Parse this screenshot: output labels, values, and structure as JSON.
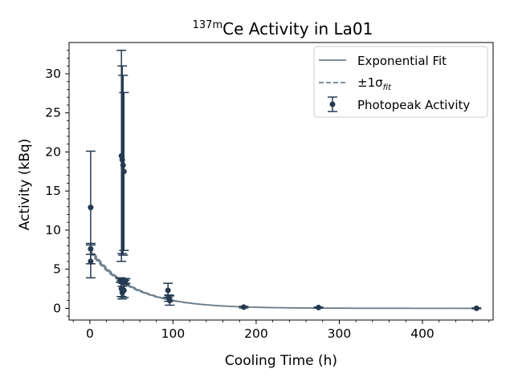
{
  "chart_data": {
    "type": "scatter",
    "title": {
      "sup": "137m",
      "main": "Ce Activity in La01"
    },
    "xlabel": "Cooling Time (h)",
    "ylabel": "Activity (kBq)",
    "xlim": [
      -25,
      485
    ],
    "ylim": [
      -1.5,
      34
    ],
    "xticks": [
      0,
      100,
      200,
      300,
      400
    ],
    "yticks": [
      0,
      5,
      10,
      15,
      20,
      25,
      30
    ],
    "grid": false,
    "legend_position": "top-right",
    "legend": [
      {
        "label": "Exponential Fit",
        "style": "solid"
      },
      {
        "label": "±1σ",
        "sub": "fit",
        "style": "dashed"
      },
      {
        "label": "Photopeak Activity",
        "style": "errorbar"
      }
    ],
    "fit": {
      "A0": 7.5,
      "half_life_h": 34.4,
      "sigma_frac": 0.04
    },
    "series": [
      {
        "name": "Photopeak Activity",
        "points": [
          {
            "x": 1,
            "y": 12.9,
            "err": 7.2
          },
          {
            "x": 1,
            "y": 7.6,
            "err": 0.7
          },
          {
            "x": 1,
            "y": 6.0,
            "err": 2.1
          },
          {
            "x": 37,
            "y": 3.6,
            "err": 0.3
          },
          {
            "x": 38,
            "y": 2.5,
            "err": 1.0
          },
          {
            "x": 38,
            "y": 19.5,
            "err": 13.5
          },
          {
            "x": 39,
            "y": 2.0,
            "err": 0.8
          },
          {
            "x": 39,
            "y": 19.0,
            "err": 12.0
          },
          {
            "x": 40,
            "y": 3.5,
            "err": 0.3
          },
          {
            "x": 40,
            "y": 18.3,
            "err": 11.5
          },
          {
            "x": 41,
            "y": 2.3,
            "err": 0.9
          },
          {
            "x": 41,
            "y": 17.5,
            "err": 10.1
          },
          {
            "x": 42,
            "y": 3.3,
            "err": 0.3
          },
          {
            "x": 43,
            "y": 3.5,
            "err": 0.3
          },
          {
            "x": 94,
            "y": 2.3,
            "err": 0.9
          },
          {
            "x": 95,
            "y": 1.3,
            "err": 0.4
          },
          {
            "x": 96,
            "y": 1.0,
            "err": 0.6
          },
          {
            "x": 185,
            "y": 0.15,
            "err": 0.1
          },
          {
            "x": 275,
            "y": 0.1,
            "err": 0.05
          },
          {
            "x": 465,
            "y": 0.0,
            "err": 0.05
          }
        ]
      }
    ],
    "colors": {
      "fit": "#6e7f8c",
      "points": "#253a52",
      "frame": "#000000"
    }
  }
}
